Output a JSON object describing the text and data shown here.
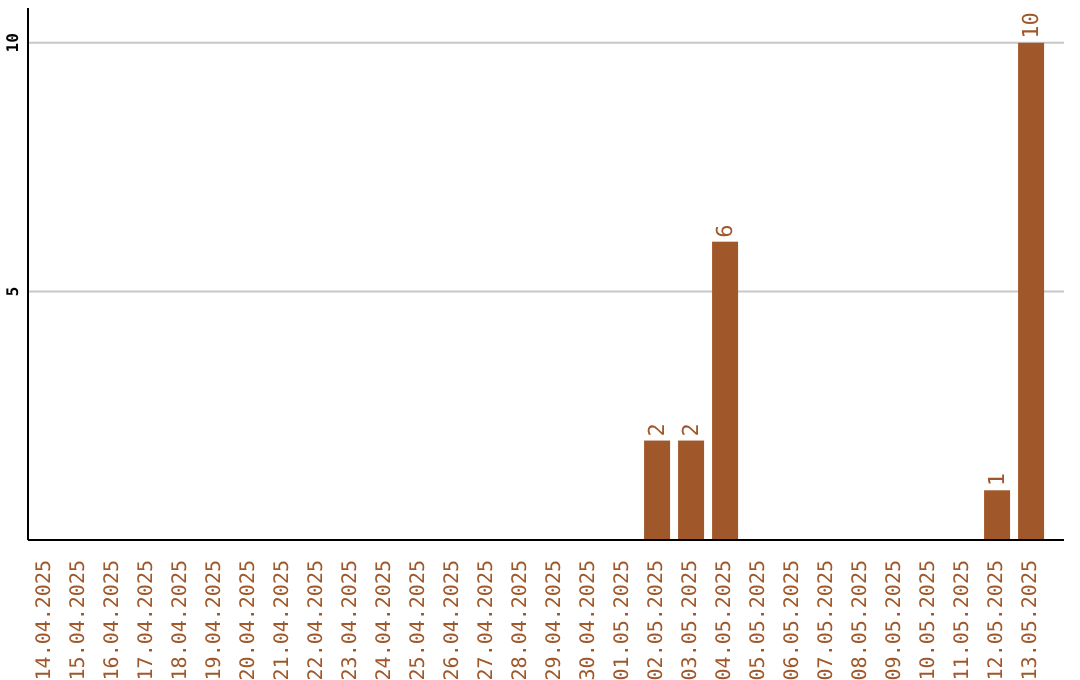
{
  "chart_data": {
    "type": "bar",
    "categories": [
      "14.04.2025",
      "15.04.2025",
      "16.04.2025",
      "17.04.2025",
      "18.04.2025",
      "19.04.2025",
      "20.04.2025",
      "21.04.2025",
      "22.04.2025",
      "23.04.2025",
      "24.04.2025",
      "25.04.2025",
      "26.04.2025",
      "27.04.2025",
      "28.04.2025",
      "29.04.2025",
      "30.04.2025",
      "01.05.2025",
      "02.05.2025",
      "03.05.2025",
      "04.05.2025",
      "05.05.2025",
      "06.05.2025",
      "07.05.2025",
      "08.05.2025",
      "09.05.2025",
      "10.05.2025",
      "11.05.2025",
      "12.05.2025",
      "13.05.2025"
    ],
    "values": [
      0,
      0,
      0,
      0,
      0,
      0,
      0,
      0,
      0,
      0,
      0,
      0,
      0,
      0,
      0,
      0,
      0,
      0,
      2,
      2,
      6,
      0,
      0,
      0,
      0,
      0,
      0,
      0,
      1,
      10
    ],
    "value_labels": [
      null,
      null,
      null,
      null,
      null,
      null,
      null,
      null,
      null,
      null,
      null,
      null,
      null,
      null,
      null,
      null,
      null,
      null,
      "2",
      "2",
      "6",
      null,
      null,
      null,
      null,
      null,
      null,
      null,
      "1",
      "10"
    ],
    "color": "#a0582a",
    "ylim": [
      0,
      10.7
    ],
    "yticks": [
      5,
      10
    ],
    "grid": "y"
  }
}
